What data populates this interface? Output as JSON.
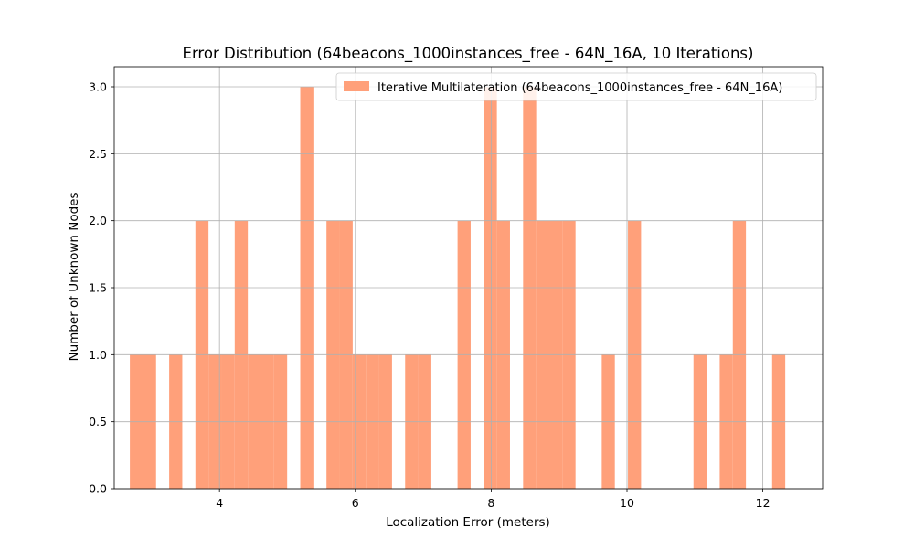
{
  "chart_data": {
    "type": "bar",
    "title": "Error Distribution (64beacons_1000instances_free - 64N_16A, 10 Iterations)",
    "xlabel": "Localization Error (meters)",
    "ylabel": "Number of Unknown Nodes",
    "xlim": [
      2.45,
      12.88
    ],
    "ylim": [
      0,
      3.15
    ],
    "grid": true,
    "legend_position": "top-right",
    "bin_width": 0.193,
    "xticks": [
      4,
      6,
      8,
      10,
      12
    ],
    "xtick_labels": [
      "4",
      "6",
      "8",
      "10",
      "12"
    ],
    "yticks": [
      0.0,
      0.5,
      1.0,
      1.5,
      2.0,
      2.5,
      3.0
    ],
    "ytick_labels": [
      "0.0",
      "0.5",
      "1.0",
      "1.5",
      "2.0",
      "2.5",
      "3.0"
    ],
    "series": [
      {
        "name": "Iterative Multilateration (64beacons_1000instances_free - 64N_16A)",
        "color": "#FFA07A",
        "bins": [
          {
            "x": 2.68,
            "count": 1
          },
          {
            "x": 2.873,
            "count": 1
          },
          {
            "x": 3.259,
            "count": 1
          },
          {
            "x": 3.645,
            "count": 2
          },
          {
            "x": 3.838,
            "count": 1
          },
          {
            "x": 4.031,
            "count": 1
          },
          {
            "x": 4.224,
            "count": 2
          },
          {
            "x": 4.417,
            "count": 1
          },
          {
            "x": 4.61,
            "count": 1
          },
          {
            "x": 4.803,
            "count": 1
          },
          {
            "x": 5.189,
            "count": 3
          },
          {
            "x": 5.575,
            "count": 2
          },
          {
            "x": 5.768,
            "count": 2
          },
          {
            "x": 5.961,
            "count": 1
          },
          {
            "x": 6.154,
            "count": 1
          },
          {
            "x": 6.347,
            "count": 1
          },
          {
            "x": 6.733,
            "count": 1
          },
          {
            "x": 6.926,
            "count": 1
          },
          {
            "x": 7.505,
            "count": 2
          },
          {
            "x": 7.891,
            "count": 3
          },
          {
            "x": 8.084,
            "count": 2
          },
          {
            "x": 8.47,
            "count": 3
          },
          {
            "x": 8.663,
            "count": 2
          },
          {
            "x": 8.856,
            "count": 2
          },
          {
            "x": 9.049,
            "count": 2
          },
          {
            "x": 9.628,
            "count": 1
          },
          {
            "x": 10.014,
            "count": 2
          },
          {
            "x": 10.979,
            "count": 1
          },
          {
            "x": 11.365,
            "count": 1
          },
          {
            "x": 11.558,
            "count": 2
          },
          {
            "x": 12.137,
            "count": 1
          }
        ]
      }
    ]
  }
}
